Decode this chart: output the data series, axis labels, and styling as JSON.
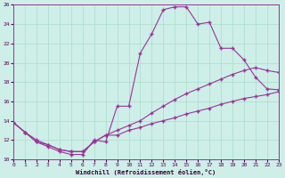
{
  "xlabel": "Windchill (Refroidissement éolien,°C)",
  "xlim": [
    0,
    23
  ],
  "ylim": [
    10,
    26
  ],
  "xticks": [
    0,
    1,
    2,
    3,
    4,
    5,
    6,
    7,
    8,
    9,
    10,
    11,
    12,
    13,
    14,
    15,
    16,
    17,
    18,
    19,
    20,
    21,
    22,
    23
  ],
  "yticks": [
    10,
    12,
    14,
    16,
    18,
    20,
    22,
    24,
    26
  ],
  "bg_color": "#ceeee8",
  "line_color": "#993399",
  "line1_x": [
    0,
    1,
    2,
    3,
    4,
    5,
    6,
    7,
    8,
    9,
    10,
    11,
    12,
    13,
    14,
    15,
    16,
    17,
    18,
    19,
    20,
    21,
    22,
    23
  ],
  "line1_y": [
    13.8,
    12.8,
    11.8,
    11.3,
    10.8,
    10.5,
    10.5,
    12.0,
    11.8,
    15.5,
    15.5,
    21.0,
    23.0,
    25.5,
    25.8,
    25.8,
    24.0,
    24.2,
    21.5,
    21.5,
    20.3,
    18.5,
    17.3,
    17.2
  ],
  "line2_x": [
    0,
    1,
    2,
    3,
    4,
    5,
    6,
    7,
    8,
    9,
    10,
    11,
    12,
    13,
    14,
    15,
    16,
    17,
    18,
    19,
    20,
    21,
    22,
    23
  ],
  "line2_y": [
    13.8,
    12.8,
    11.8,
    11.5,
    11.0,
    10.8,
    10.8,
    11.8,
    12.5,
    13.0,
    13.5,
    14.0,
    14.8,
    15.5,
    16.2,
    16.8,
    17.3,
    17.8,
    18.3,
    18.8,
    19.2,
    19.5,
    19.2,
    19.0
  ],
  "line3_x": [
    0,
    1,
    2,
    3,
    4,
    5,
    6,
    7,
    8,
    9,
    10,
    11,
    12,
    13,
    14,
    15,
    16,
    17,
    18,
    19,
    20,
    21,
    22,
    23
  ],
  "line3_y": [
    13.8,
    12.8,
    12.0,
    11.5,
    11.0,
    10.8,
    10.8,
    11.8,
    12.5,
    12.5,
    13.0,
    13.3,
    13.7,
    14.0,
    14.3,
    14.7,
    15.0,
    15.3,
    15.7,
    16.0,
    16.3,
    16.5,
    16.7,
    17.0
  ]
}
